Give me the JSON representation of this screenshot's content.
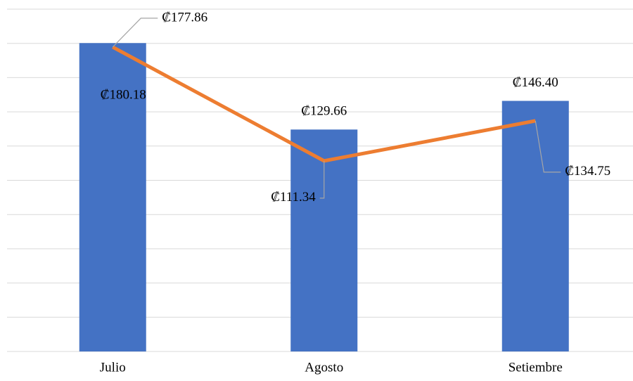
{
  "chart_data": {
    "type": "bar_line",
    "categories": [
      "Julio",
      "Agosto",
      "Setiembre"
    ],
    "series": [
      {
        "type": "bar",
        "color": "#4472c4",
        "values": [
          180.18,
          129.66,
          146.4
        ],
        "value_labels": [
          "₡180.18",
          "₡129.66",
          "₡146.40"
        ]
      },
      {
        "type": "line",
        "color": "#ed7d31",
        "values": [
          177.86,
          111.34,
          134.75
        ],
        "value_labels": [
          "₡177.86",
          "₡111.34",
          "₡134.75"
        ]
      }
    ],
    "ylim": [
      0,
      200
    ],
    "yticks": [
      0,
      20,
      40,
      60,
      80,
      100,
      120,
      140,
      160,
      180,
      200
    ],
    "grid": true
  }
}
